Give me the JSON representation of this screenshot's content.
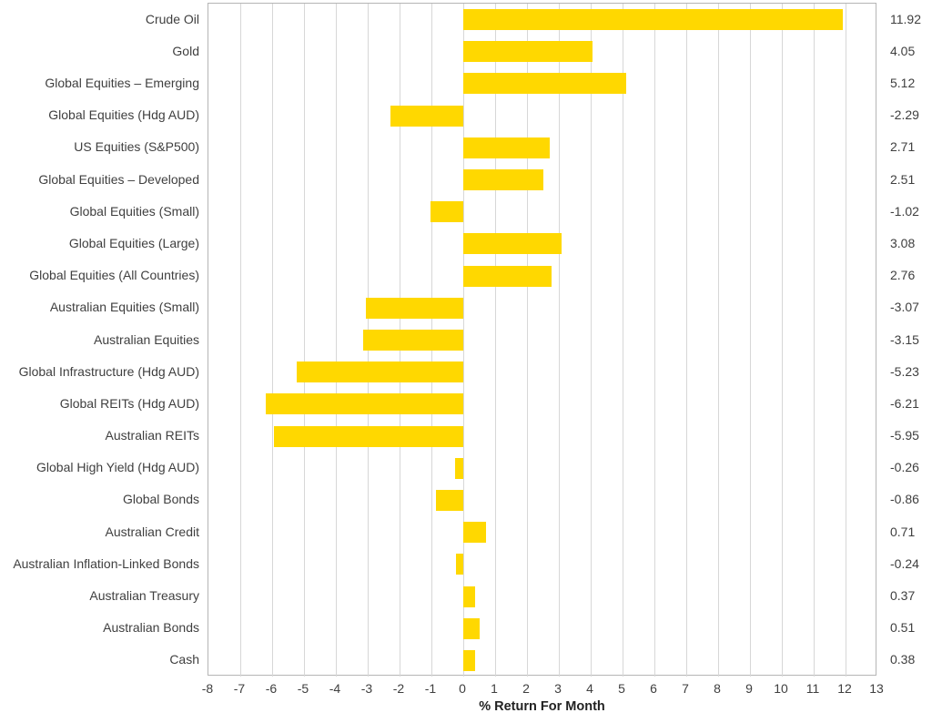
{
  "chart_data": {
    "type": "bar",
    "orientation": "horizontal",
    "title": "",
    "xlabel": "% Return For Month",
    "xlim": [
      -8,
      13
    ],
    "xticks": [
      -8,
      -7,
      -6,
      -5,
      -4,
      -3,
      -2,
      -1,
      0,
      1,
      2,
      3,
      4,
      5,
      6,
      7,
      8,
      9,
      10,
      11,
      12,
      13
    ],
    "grid": true,
    "legend": "none",
    "categories": [
      "Crude Oil",
      "Gold",
      "Global Equities – Emerging",
      "Global Equities (Hdg AUD)",
      "US Equities (S&P500)",
      "Global Equities – Developed",
      "Global Equities (Small)",
      "Global Equities (Large)",
      "Global Equities (All Countries)",
      "Australian Equities (Small)",
      "Australian Equities",
      "Global Infrastructure (Hdg AUD)",
      "Global REITs (Hdg AUD)",
      "Australian REITs",
      "Global High Yield (Hdg AUD)",
      "Global Bonds",
      "Australian Credit",
      "Australian Inflation-Linked Bonds",
      "Australian Treasury",
      "Australian Bonds",
      "Cash"
    ],
    "values": [
      11.92,
      4.05,
      5.12,
      -2.29,
      2.71,
      2.51,
      -1.02,
      3.08,
      2.76,
      -3.07,
      -3.15,
      -5.23,
      -6.21,
      -5.95,
      -0.26,
      -0.86,
      0.71,
      -0.24,
      0.37,
      0.51,
      0.38
    ],
    "value_labels": [
      "11.92",
      "4.05",
      "5.12",
      "-2.29",
      "2.71",
      "2.51",
      "-1.02",
      "3.08",
      "2.76",
      "-3.07",
      "-3.15",
      "-5.23",
      "-6.21",
      "-5.95",
      "-0.26",
      "-0.86",
      "0.71",
      "-0.24",
      "0.37",
      "0.51",
      "0.38"
    ]
  },
  "colors": {
    "bar": "#FFD800",
    "grid": "#D7D7D7",
    "plot_border": "#B5B5B5",
    "text": "#3F3F3F",
    "axis_title": "#222222",
    "background": "#FFFFFF"
  }
}
